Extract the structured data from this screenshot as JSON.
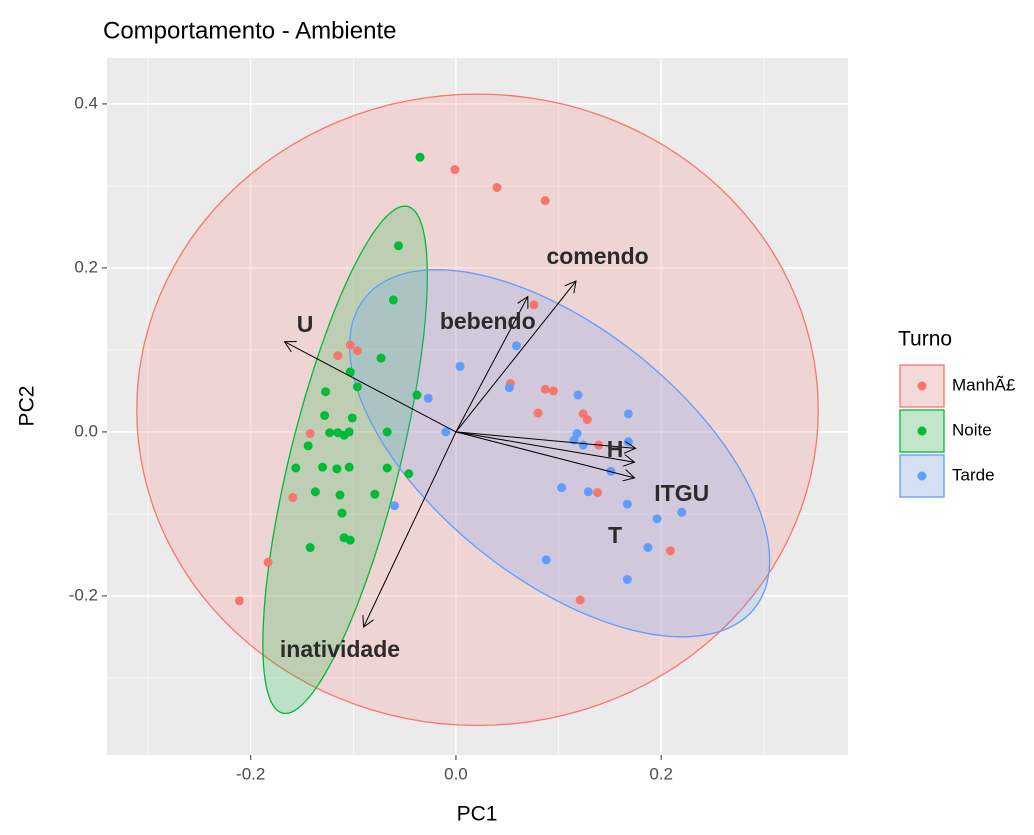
{
  "chart_data": {
    "type": "scatter",
    "title": "Comportamento - Ambiente",
    "xlabel": "PC1",
    "ylabel": "PC2",
    "xlim": [
      -0.34,
      0.382
    ],
    "ylim": [
      -0.394,
      0.456
    ],
    "xticks": [
      {
        "value": -0.2,
        "label": "-0.2"
      },
      {
        "value": 0,
        "label": "0.0"
      },
      {
        "value": 0.2,
        "label": "0.2"
      }
    ],
    "yticks": [
      {
        "value": -0.2,
        "label": "-0.2"
      },
      {
        "value": 0,
        "label": "0.0"
      },
      {
        "value": 0.2,
        "label": "0.2"
      },
      {
        "value": 0.4,
        "label": "0.4"
      }
    ],
    "xminor": [
      -0.3,
      -0.1,
      0.1,
      0.3
    ],
    "yminor": [
      -0.3,
      -0.1,
      0.1,
      0.3
    ],
    "grid": true,
    "legend_title": "Turno",
    "legend_position": "right",
    "series": [
      {
        "name": "ManhÃ£",
        "color": "#F8766D",
        "x": [
          -0.001,
          0.04,
          0.087,
          -0.115,
          -0.103,
          -0.096,
          -0.142,
          -0.159,
          -0.183,
          -0.211,
          0.053,
          0.087,
          0.08,
          0.095,
          0.124,
          0.128,
          0.139,
          0.138,
          0.121,
          0.209,
          0.076
        ],
        "y": [
          0.32,
          0.298,
          0.282,
          0.093,
          0.106,
          0.099,
          -0.002,
          -0.08,
          -0.159,
          -0.206,
          0.059,
          0.052,
          0.023,
          0.05,
          0.022,
          0.015,
          -0.016,
          -0.074,
          -0.205,
          -0.145,
          0.155
        ],
        "ellipse": {
          "cx": 0.021,
          "cy": 0.027,
          "ax": 0.332,
          "ay": 0,
          "bx": 0,
          "by": 0.385
        }
      },
      {
        "name": "Noite",
        "color": "#00BA38",
        "x": [
          -0.035,
          -0.056,
          -0.061,
          -0.073,
          -0.096,
          -0.038,
          -0.103,
          -0.127,
          -0.128,
          -0.101,
          -0.123,
          -0.115,
          -0.109,
          -0.104,
          -0.144,
          -0.156,
          -0.13,
          -0.104,
          -0.067,
          -0.067,
          -0.046,
          -0.116,
          -0.137,
          -0.113,
          -0.079,
          -0.111,
          -0.142,
          -0.109,
          -0.103
        ],
        "y": [
          0.335,
          0.227,
          0.161,
          0.09,
          0.055,
          0.045,
          0.073,
          0.049,
          0.02,
          0.017,
          -0.001,
          -0.001,
          -0.004,
          0.0,
          -0.017,
          -0.044,
          -0.043,
          -0.043,
          0.0,
          -0.044,
          -0.051,
          -0.045,
          -0.073,
          -0.077,
          -0.076,
          -0.099,
          -0.141,
          -0.129,
          -0.132
        ],
        "ellipse": {
          "cx": -0.108,
          "cy": -0.034,
          "ax": 0.061,
          "ay": 0.309,
          "bx": 0.052,
          "by": -0.016
        }
      },
      {
        "name": "Tarde",
        "color": "#619CFF",
        "x": [
          0.004,
          0.059,
          0.052,
          -0.01,
          -0.027,
          0.119,
          0.118,
          0.115,
          0.124,
          0.168,
          0.168,
          0.151,
          0.103,
          0.129,
          0.167,
          0.196,
          0.22,
          0.088,
          0.167,
          0.187,
          -0.06
        ],
        "y": [
          0.08,
          0.105,
          0.054,
          0.0,
          0.041,
          0.045,
          -0.002,
          -0.01,
          -0.016,
          0.022,
          -0.012,
          -0.048,
          -0.068,
          -0.073,
          -0.088,
          -0.106,
          -0.098,
          -0.156,
          -0.18,
          -0.141,
          -0.09
        ],
        "ellipse": {
          "cx": 0.101,
          "cy": -0.026,
          "ax": 0.19,
          "ay": -0.189,
          "bx": 0.076,
          "by": 0.12
        }
      }
    ],
    "loadings": [
      {
        "name": "U",
        "x": -0.167,
        "y": 0.11,
        "label_x": -0.147,
        "label_y": 0.129
      },
      {
        "name": "comendo",
        "x": 0.117,
        "y": 0.184,
        "label_x": 0.138,
        "label_y": 0.212
      },
      {
        "name": "bebendo",
        "x": 0.07,
        "y": 0.165,
        "label_x": 0.031,
        "label_y": 0.133
      },
      {
        "name": "inatividade",
        "x": -0.09,
        "y": -0.238,
        "label_x": -0.113,
        "label_y": -0.267
      },
      {
        "name": "H",
        "x": 0.175,
        "y": -0.02,
        "label_x": 0.155,
        "label_y": -0.023
      },
      {
        "name": "ITGU",
        "x": 0.174,
        "y": -0.037,
        "label_x": 0.22,
        "label_y": -0.077
      },
      {
        "name": "T",
        "x": 0.174,
        "y": -0.056,
        "label_x": 0.155,
        "label_y": -0.128
      }
    ]
  }
}
